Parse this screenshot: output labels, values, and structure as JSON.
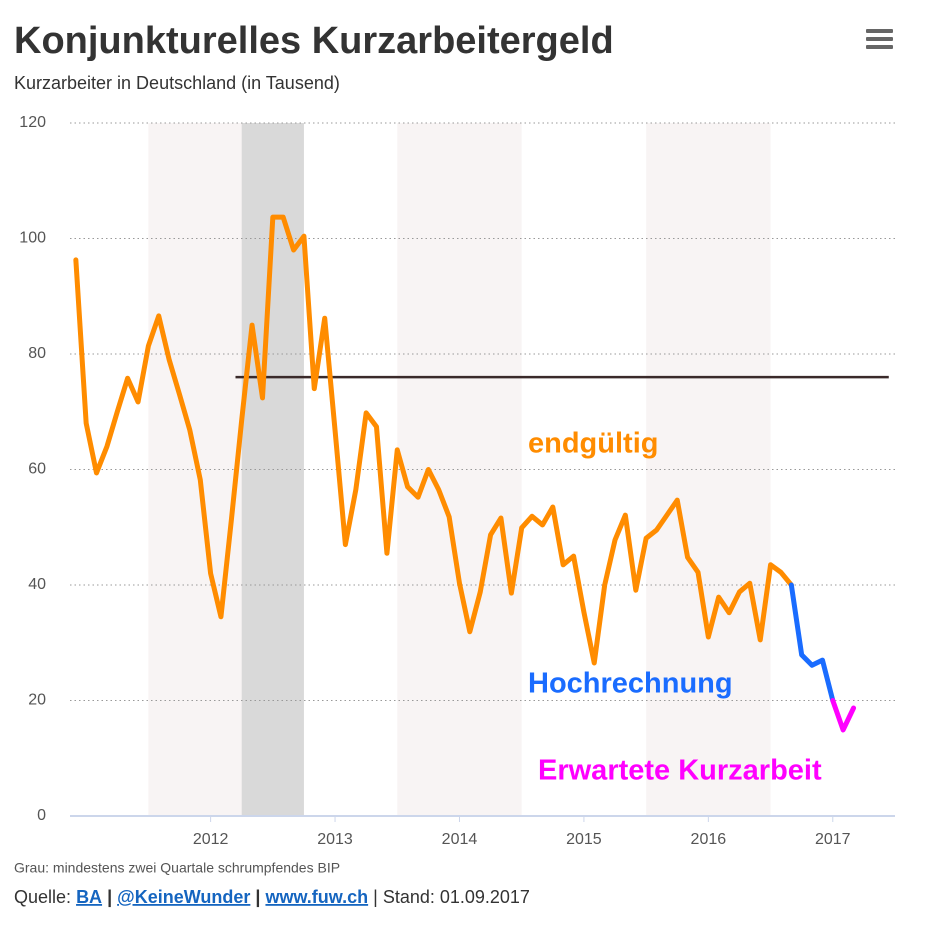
{
  "chart_data": {
    "type": "line",
    "title": "Konjunkturelles Kurzarbeitergeld",
    "subtitle": "Kurzarbeiter in Deutschland (in Tausend)",
    "xlim": [
      2011.37,
      2018.0
    ],
    "ylim": [
      0,
      120
    ],
    "yticks": [
      0,
      20,
      40,
      60,
      80,
      100,
      120
    ],
    "xticks": [
      {
        "value": 2012.5,
        "label": "2012"
      },
      {
        "value": 2013.5,
        "label": "2013"
      },
      {
        "value": 2014.5,
        "label": "2014"
      },
      {
        "value": 2015.5,
        "label": "2015"
      },
      {
        "value": 2016.5,
        "label": "2016"
      },
      {
        "value": 2017.5,
        "label": "2017"
      }
    ],
    "grid": true,
    "year_bands": [
      [
        2012,
        2013
      ],
      [
        2014,
        2015
      ],
      [
        2016,
        2017
      ]
    ],
    "recession_band": [
      2012.75,
      2013.25
    ],
    "reference_line": {
      "value": 76,
      "x": [
        2012.7,
        2017.95
      ],
      "color": "#3a2a2a"
    },
    "series": [
      {
        "name": "endgültig",
        "color": "#ff8c00",
        "x": [
          2011.417,
          2011.5,
          2011.583,
          2011.667,
          2011.75,
          2011.833,
          2011.917,
          2012,
          2012.083,
          2012.167,
          2012.25,
          2012.333,
          2012.417,
          2012.5,
          2012.583,
          2012.667,
          2012.75,
          2012.833,
          2012.917,
          2013,
          2013.083,
          2013.167,
          2013.25,
          2013.333,
          2013.417,
          2013.5,
          2013.583,
          2013.667,
          2013.75,
          2013.833,
          2013.917,
          2014,
          2014.083,
          2014.167,
          2014.25,
          2014.333,
          2014.417,
          2014.5,
          2014.583,
          2014.667,
          2014.75,
          2014.833,
          2014.917,
          2015,
          2015.083,
          2015.167,
          2015.25,
          2015.333,
          2015.417,
          2015.5,
          2015.583,
          2015.667,
          2015.75,
          2015.833,
          2015.917,
          2016,
          2016.083,
          2016.167,
          2016.25,
          2016.333,
          2016.417,
          2016.5,
          2016.583,
          2016.667,
          2016.75,
          2016.833,
          2016.917,
          2017,
          2017.083,
          2017.167
        ],
        "values": [
          96.3,
          68,
          59.4,
          64,
          70,
          75.8,
          71.7,
          81.4,
          86.6,
          79,
          73,
          66.8,
          58.2,
          42,
          34.5,
          51.3,
          68.6,
          85,
          72.4,
          103.7,
          103.7,
          98,
          100.4,
          74,
          86.2,
          66.8,
          47,
          56.5,
          69.8,
          67.4,
          45.5,
          63.4,
          57,
          55.2,
          60,
          56.5,
          51.8,
          40.3,
          31.9,
          38.8,
          48.7,
          51.6,
          38.6,
          49.9,
          51.9,
          50.4,
          53.5,
          43.5,
          45,
          35.3,
          26.5,
          40,
          47.8,
          52.1,
          39.1,
          48.1,
          49.5,
          52.1,
          54.7,
          44.8,
          42.2,
          31,
          37.9,
          35.2,
          38.8,
          40.3,
          30.5,
          43.5,
          42.2,
          40
        ]
      },
      {
        "name": "Hochrechnung",
        "color": "#1a6cff",
        "x": [
          2017.167,
          2017.25,
          2017.333,
          2017.417,
          2017.5
        ],
        "values": [
          40,
          27.9,
          26.1,
          27,
          20
        ]
      },
      {
        "name": "Erwartete Kurzarbeit",
        "color": "#ff00ff",
        "x": [
          2017.5,
          2017.583,
          2017.667
        ],
        "values": [
          20,
          14.9,
          18.7
        ]
      }
    ],
    "note": "Grau: mindestens zwei Quartale schrumpfendes BIP",
    "source": {
      "prefix": "Quelle:",
      "links": [
        "BA",
        "@KeineWunder",
        "www.fuw.ch"
      ],
      "separator": "|",
      "stand": "| Stand: 01.09.2017"
    }
  }
}
